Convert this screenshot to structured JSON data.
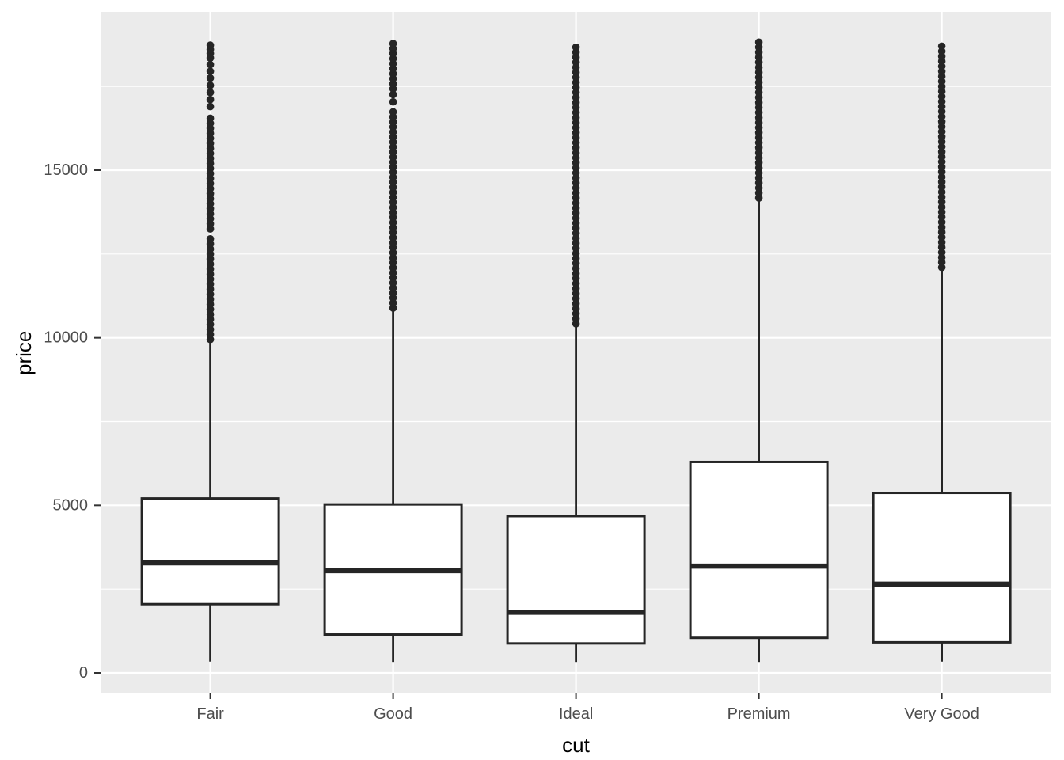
{
  "chart_data": {
    "type": "boxplot",
    "title": "",
    "xlabel": "cut",
    "ylabel": "price",
    "categories": [
      "Fair",
      "Good",
      "Ideal",
      "Premium",
      "Very Good"
    ],
    "y_axis": {
      "ticks": [
        0,
        5000,
        10000,
        15000
      ],
      "minor_ticks": [
        2500,
        7500,
        12500,
        17500
      ],
      "limits": [
        -600,
        19750
      ],
      "grid": "on",
      "legend": "none"
    },
    "series": [
      {
        "cut": "Fair",
        "whisker_low": 337,
        "q1": 2050,
        "median": 3282,
        "q3": 5206,
        "whisker_high": 9938,
        "outlier_bands": [
          [
            9950,
            13050,
            150
          ],
          [
            13250,
            16650,
            150
          ],
          [
            16900,
            17550,
            210
          ]
        ],
        "outlier_points": [
          17750,
          17950,
          18150,
          18350,
          18480,
          18600,
          18730
        ]
      },
      {
        "cut": "Good",
        "whisker_low": 327,
        "q1": 1145,
        "median": 3051,
        "q3": 5028,
        "whisker_high": 10840,
        "outlier_bands": [
          [
            10890,
            16820,
            150
          ],
          [
            17430,
            18790,
            150
          ]
        ],
        "outlier_points": [
          17040,
          17260
        ]
      },
      {
        "cut": "Ideal",
        "whisker_low": 326,
        "q1": 878,
        "median": 1810,
        "q3": 4678,
        "whisker_high": 10360,
        "outlier_bands": [
          [
            10420,
            18800,
            150
          ]
        ],
        "outlier_points": []
      },
      {
        "cut": "Premium",
        "whisker_low": 326,
        "q1": 1046,
        "median": 3185,
        "q3": 6296,
        "whisker_high": 14140,
        "outlier_bands": [
          [
            14170,
            18820,
            150
          ]
        ],
        "outlier_points": []
      },
      {
        "cut": "Very Good",
        "whisker_low": 336,
        "q1": 912,
        "median": 2648,
        "q3": 5373,
        "whisker_high": 12030,
        "outlier_bands": [
          [
            12100,
            18818,
            150
          ]
        ],
        "outlier_points": []
      }
    ],
    "colors": {
      "panel_background": "#EBEBEB",
      "gridline": "#FFFFFF",
      "box_fill": "#FFFFFF",
      "line": "#252525",
      "tick_mark": "#333333",
      "tick_label": "#4D4D4D",
      "axis_title": "#000000"
    }
  }
}
